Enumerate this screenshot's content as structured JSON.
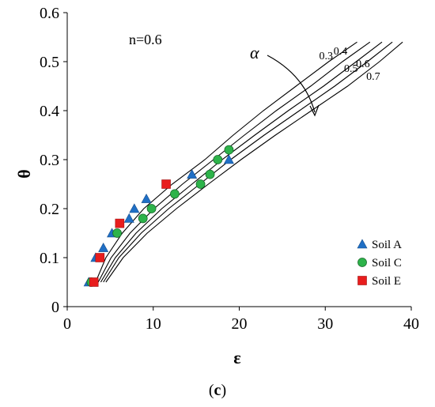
{
  "chart_data": {
    "type": "scatter",
    "xlabel": "ε",
    "ylabel": "θ",
    "xlim": [
      0,
      40
    ],
    "ylim": [
      0,
      0.6
    ],
    "x_ticks": [
      "0",
      "10",
      "20",
      "30",
      "40"
    ],
    "y_ticks": [
      "0",
      "0.1",
      "0.2",
      "0.3",
      "0.4",
      "0.5",
      "0.6"
    ],
    "annotation": "n=0.6",
    "alpha_symbol": "α",
    "legend_position": "bottom-right",
    "curves": [
      {
        "label": "0.3",
        "points": [
          [
            3.3,
            0.05
          ],
          [
            4.5,
            0.1
          ],
          [
            6.4,
            0.15
          ],
          [
            8.9,
            0.2
          ],
          [
            12.2,
            0.25
          ],
          [
            16.0,
            0.3
          ],
          [
            19.3,
            0.35
          ],
          [
            22.8,
            0.4
          ],
          [
            26.6,
            0.45
          ],
          [
            30.4,
            0.5
          ],
          [
            33.7,
            0.54
          ]
        ]
      },
      {
        "label": "0.4",
        "points": [
          [
            3.6,
            0.05
          ],
          [
            5.1,
            0.1
          ],
          [
            7.3,
            0.15
          ],
          [
            10.1,
            0.2
          ],
          [
            13.4,
            0.25
          ],
          [
            17.0,
            0.3
          ],
          [
            20.6,
            0.35
          ],
          [
            24.3,
            0.4
          ],
          [
            28.3,
            0.45
          ],
          [
            32.0,
            0.5
          ],
          [
            35.2,
            0.54
          ]
        ]
      },
      {
        "label": "0.5",
        "points": [
          [
            3.9,
            0.05
          ],
          [
            5.6,
            0.1
          ],
          [
            8.0,
            0.15
          ],
          [
            11.0,
            0.2
          ],
          [
            14.5,
            0.25
          ],
          [
            18.0,
            0.3
          ],
          [
            21.8,
            0.35
          ],
          [
            25.7,
            0.4
          ],
          [
            29.8,
            0.45
          ],
          [
            33.6,
            0.5
          ],
          [
            36.6,
            0.54
          ]
        ]
      },
      {
        "label": "0.6",
        "points": [
          [
            4.2,
            0.05
          ],
          [
            6.0,
            0.1
          ],
          [
            8.6,
            0.15
          ],
          [
            11.8,
            0.2
          ],
          [
            15.4,
            0.25
          ],
          [
            19.0,
            0.3
          ],
          [
            22.9,
            0.35
          ],
          [
            27.0,
            0.4
          ],
          [
            31.1,
            0.45
          ],
          [
            34.9,
            0.5
          ],
          [
            37.8,
            0.54
          ]
        ]
      },
      {
        "label": "0.7",
        "points": [
          [
            4.5,
            0.05
          ],
          [
            6.5,
            0.1
          ],
          [
            9.3,
            0.15
          ],
          [
            12.7,
            0.2
          ],
          [
            16.4,
            0.25
          ],
          [
            20.2,
            0.3
          ],
          [
            24.2,
            0.35
          ],
          [
            28.4,
            0.4
          ],
          [
            32.6,
            0.45
          ],
          [
            36.3,
            0.5
          ],
          [
            39.0,
            0.54
          ]
        ]
      }
    ],
    "series": [
      {
        "name": "Soil A",
        "marker": "triangle",
        "color": "#1f6fc5",
        "points": [
          [
            2.5,
            0.05
          ],
          [
            3.3,
            0.1
          ],
          [
            4.2,
            0.12
          ],
          [
            5.2,
            0.15
          ],
          [
            7.2,
            0.18
          ],
          [
            7.8,
            0.2
          ],
          [
            9.2,
            0.22
          ],
          [
            14.5,
            0.27
          ],
          [
            18.8,
            0.3
          ]
        ]
      },
      {
        "name": "Soil C",
        "marker": "circle",
        "color": "#2db34a",
        "points": [
          [
            2.8,
            0.05
          ],
          [
            5.8,
            0.15
          ],
          [
            8.8,
            0.18
          ],
          [
            9.8,
            0.2
          ],
          [
            12.5,
            0.23
          ],
          [
            15.5,
            0.25
          ],
          [
            16.6,
            0.27
          ],
          [
            17.5,
            0.3
          ],
          [
            18.8,
            0.32
          ]
        ]
      },
      {
        "name": "Soil E",
        "marker": "square",
        "color": "#e81d1d",
        "points": [
          [
            3.1,
            0.05
          ],
          [
            3.8,
            0.1
          ],
          [
            6.1,
            0.17
          ],
          [
            11.5,
            0.25
          ]
        ]
      }
    ]
  },
  "caption": {
    "open": "(",
    "letter": "c",
    "close": ")"
  }
}
